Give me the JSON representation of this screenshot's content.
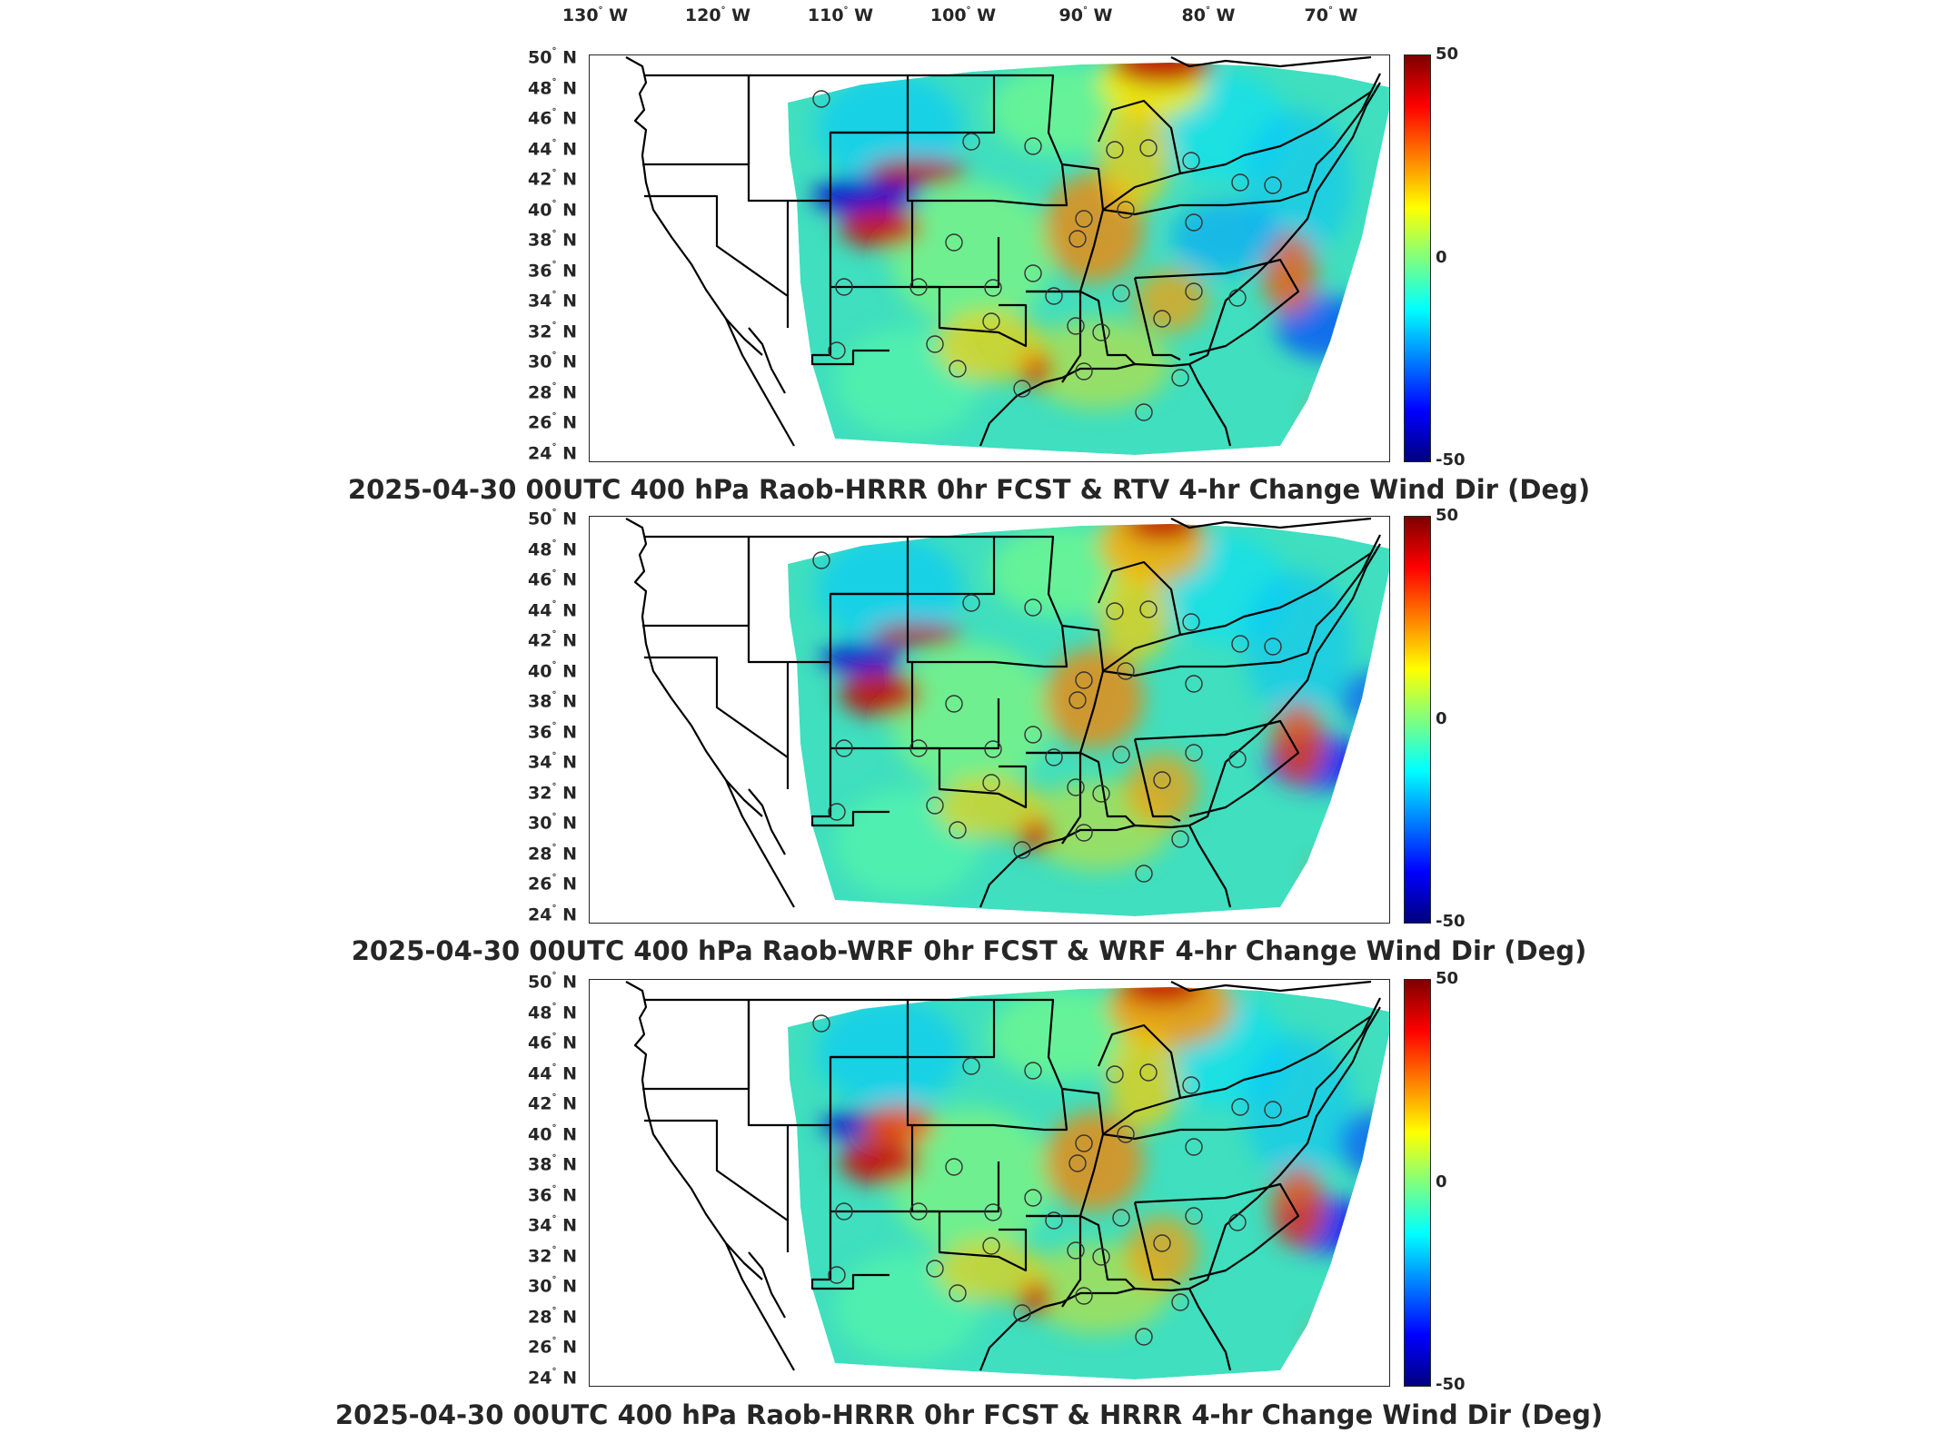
{
  "figure": {
    "lon_labels": [
      "130",
      "120",
      "110",
      "100",
      "90",
      "80",
      "70"
    ],
    "lon_suffix": "W",
    "lat_labels": [
      "50",
      "48",
      "46",
      "44",
      "42",
      "40",
      "38",
      "36",
      "34",
      "32",
      "30",
      "28",
      "26",
      "24"
    ],
    "lat_suffix": "N",
    "degree_symbol": "°",
    "colorbar": {
      "max": "50",
      "mid": "0",
      "min": "-50",
      "colors": [
        "#00007f",
        "#0000ff",
        "#007fff",
        "#00ffff",
        "#7fff7f",
        "#ffff00",
        "#ff7f00",
        "#ff0000",
        "#7f0000"
      ]
    },
    "panels": [
      {
        "title": "2025-04-30 00UTC 400 hPa Raob-HRRR 0hr FCST & RTV 4-hr Change Wind Dir (Deg)"
      },
      {
        "title": "2025-04-30 00UTC 400 hPa Raob-WRF 0hr FCST & WRF 4-hr Change Wind Dir (Deg)"
      },
      {
        "title": "2025-04-30 00UTC 400 hPa Raob-HRRR 0hr FCST & HRRR 4-hr Change Wind Dir (Deg)"
      }
    ],
    "stations_visible": 32
  }
}
